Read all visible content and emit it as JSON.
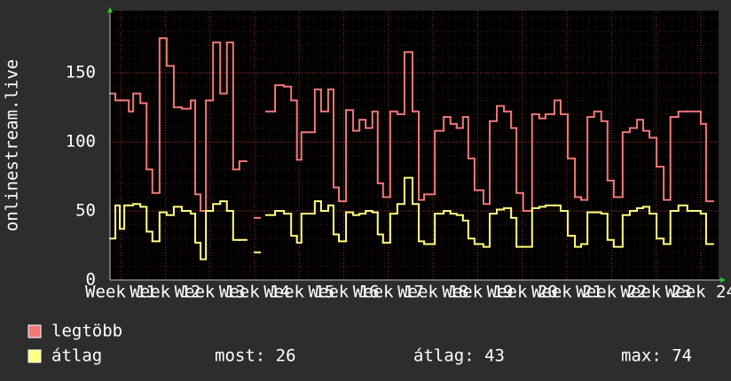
{
  "chart_data": {
    "type": "step-line",
    "y_label": "onlinestream.live",
    "x": [
      10.76,
      10.88,
      10.98,
      11.08,
      11.18,
      11.28,
      11.44,
      11.58,
      11.71,
      11.87,
      12.03,
      12.19,
      12.37,
      12.57,
      12.67,
      12.79,
      12.91,
      13.07,
      13.23,
      13.38,
      13.52,
      13.66,
      13.82,
      14.0,
      14.12,
      14.26,
      14.46,
      14.66,
      14.82,
      14.95,
      15.05,
      15.35,
      15.49,
      15.65,
      15.77,
      15.89,
      16.05,
      16.21,
      16.35,
      16.49,
      16.64,
      16.76,
      16.88,
      17.04,
      17.2,
      17.36,
      17.54,
      17.68,
      17.8,
      18.04,
      18.24,
      18.39,
      18.53,
      18.67,
      18.79,
      18.93,
      19.13,
      19.27,
      19.43,
      19.59,
      19.75,
      19.87,
      20.02,
      20.22,
      20.38,
      20.52,
      20.72,
      20.86,
      21.02,
      21.18,
      21.32,
      21.46,
      21.61,
      21.77,
      21.91,
      22.05,
      22.25,
      22.41,
      22.57,
      22.71,
      22.85,
      23.01,
      23.17,
      23.32,
      23.5,
      23.7,
      24.0,
      24.12
    ],
    "series": [
      {
        "name": "legtöbb",
        "color": "#f07878",
        "values": [
          135,
          130,
          130,
          130,
          122,
          135,
          128,
          80,
          63,
          175,
          155,
          125,
          124,
          130,
          62,
          50,
          130,
          172,
          135,
          172,
          80,
          86,
          null,
          45,
          null,
          122,
          141,
          140,
          130,
          87,
          107,
          138,
          122,
          138,
          67,
          57,
          123,
          108,
          116,
          110,
          122,
          70,
          60,
          122,
          120,
          165,
          122,
          58,
          62,
          108,
          118,
          113,
          110,
          118,
          88,
          65,
          55,
          115,
          126,
          122,
          110,
          63,
          50,
          120,
          117,
          120,
          130,
          120,
          88,
          60,
          58,
          118,
          122,
          115,
          72,
          60,
          107,
          110,
          116,
          108,
          103,
          82,
          58,
          118,
          122,
          122,
          113,
          57
        ]
      },
      {
        "name": "átlag",
        "color": "#ffff80",
        "values": [
          30,
          54,
          37,
          54,
          54,
          55,
          53,
          35,
          28,
          49,
          47,
          53,
          50,
          48,
          27,
          15,
          50,
          55,
          57,
          50,
          29,
          29,
          null,
          20,
          null,
          47,
          50,
          48,
          32,
          27,
          48,
          57,
          50,
          54,
          33,
          28,
          49,
          47,
          48,
          50,
          49,
          33,
          27,
          48,
          55,
          74,
          55,
          28,
          26,
          48,
          50,
          48,
          47,
          43,
          30,
          26,
          24,
          48,
          51,
          52,
          45,
          24,
          24,
          52,
          53,
          54,
          54,
          50,
          32,
          24,
          26,
          49,
          49,
          48,
          29,
          24,
          47,
          50,
          52,
          53,
          48,
          30,
          26,
          50,
          54,
          50,
          48,
          26
        ]
      }
    ],
    "stats": [
      "most: 26",
      "átlag: 43",
      "max: 74"
    ],
    "xlim": [
      10.76,
      24.4
    ],
    "xticks": [
      {
        "value": 11,
        "label": "Week 11"
      },
      {
        "value": 12,
        "label": "Week 12"
      },
      {
        "value": 13,
        "label": "Week 13"
      },
      {
        "value": 14,
        "label": "Week 14"
      },
      {
        "value": 15,
        "label": "Week 15"
      },
      {
        "value": 16,
        "label": "Week 16"
      },
      {
        "value": 17,
        "label": "Week 17"
      },
      {
        "value": 18,
        "label": "Week 18"
      },
      {
        "value": 19,
        "label": "Week 19"
      },
      {
        "value": 20,
        "label": "Week 20"
      },
      {
        "value": 21,
        "label": "Week 21"
      },
      {
        "value": 22,
        "label": "Week 22"
      },
      {
        "value": 23,
        "label": "Week 23"
      },
      {
        "value": 24,
        "label": "Week 24"
      }
    ],
    "ylim": [
      0,
      195
    ],
    "yticks": [
      0,
      50,
      100,
      150
    ],
    "grid": true
  }
}
